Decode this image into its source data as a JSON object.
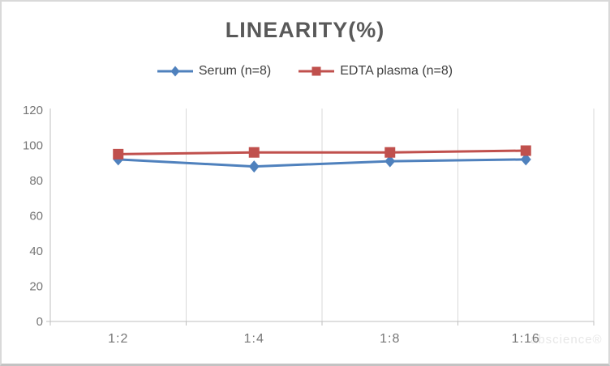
{
  "watermark": "abscience®",
  "chart_data": {
    "type": "line",
    "title": "LINEARITY(%)",
    "categories": [
      "1:2",
      "1:4",
      "1:8",
      "1:16"
    ],
    "series": [
      {
        "name": "Serum (n=8)",
        "color": "#4F81BD",
        "marker": "diamond",
        "values": [
          92,
          88,
          91,
          92
        ]
      },
      {
        "name": "EDTA plasma (n=8)",
        "color": "#C0504D",
        "marker": "square",
        "values": [
          95,
          96,
          96,
          97
        ]
      }
    ],
    "xlabel": "",
    "ylabel": "",
    "ylim": [
      0,
      120
    ],
    "y_ticks": [
      0,
      20,
      40,
      60,
      80,
      100,
      120
    ],
    "grid": "vertical-only",
    "legend_position": "top",
    "colors": {
      "title_text": "#595959",
      "legend_text": "#404040",
      "tick_label": "#767676",
      "axis_line": "#BFBFBF",
      "gridline": "#D9D9D9",
      "background": "#FFFFFF"
    }
  }
}
